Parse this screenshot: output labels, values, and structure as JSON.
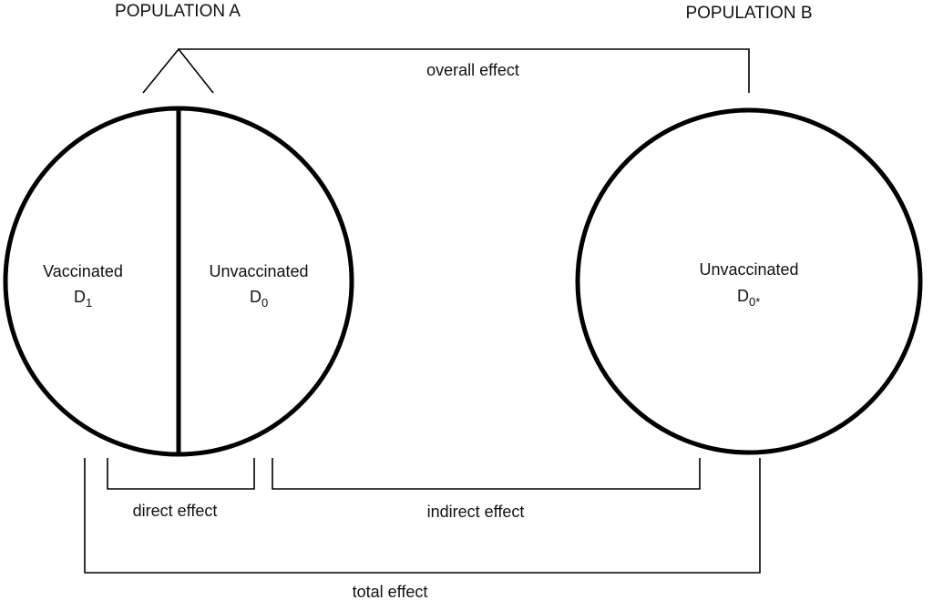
{
  "headers": {
    "population_a": "POPULATION A",
    "population_b": "POPULATION B"
  },
  "population_a": {
    "left_half": {
      "label": "Vaccinated",
      "symbol": "D",
      "subscript": "1"
    },
    "right_half": {
      "label": "Unvaccinated",
      "symbol": "D",
      "subscript": "0"
    }
  },
  "population_b": {
    "label": "Unvaccinated",
    "symbol": "D",
    "subscript": "0*"
  },
  "effects": {
    "overall": "overall effect",
    "direct": "direct effect",
    "indirect": "indirect effect",
    "total": "total effect"
  }
}
